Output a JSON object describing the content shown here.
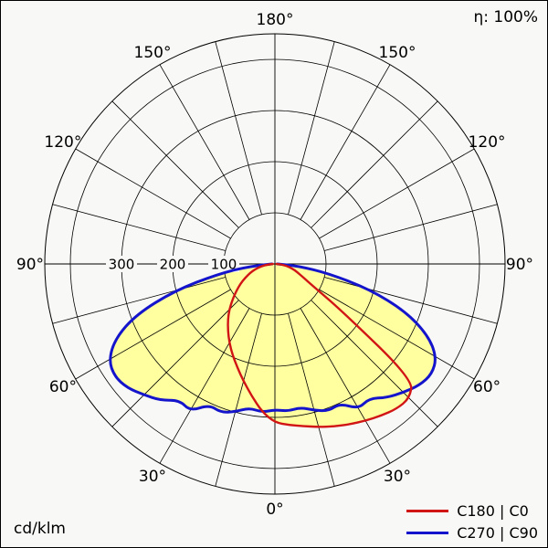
{
  "header": {
    "efficiency": "η: 100%"
  },
  "footer": {
    "unit": "cd/klm"
  },
  "legend": {
    "items": [
      {
        "label": "C180 | C0",
        "color": "#d11414"
      },
      {
        "label": "C270 | C90",
        "color": "#1414cc"
      }
    ]
  },
  "chart_data": {
    "type": "polar",
    "subtype": "luminous-intensity-distribution",
    "title": "Luminous intensity distribution polar curve",
    "unit": "cd/klm",
    "efficiency": "100%",
    "fill_color": "#ffffa0",
    "grid": {
      "angle_step_deg": 15,
      "angle_label_step_deg": 30,
      "angle_labels": [
        "0°",
        "30°",
        "60°",
        "90°",
        "120°",
        "150°",
        "180°"
      ],
      "radial_ticks": [
        100,
        200,
        300,
        400
      ],
      "radial_tick_labels": [
        "100",
        "200",
        "300"
      ],
      "grid_color": "#000000"
    },
    "angles_deg": [
      0,
      5,
      10,
      15,
      20,
      25,
      30,
      35,
      40,
      45,
      50,
      55,
      60,
      65,
      70,
      75,
      80,
      85,
      90
    ],
    "series": [
      {
        "id": "c180-c0",
        "name": "C180 | C0",
        "color": "#d11414",
        "left_plane": "C180",
        "right_plane": "C0",
        "left_values": [
          310,
          290,
          262,
          237,
          215,
          196,
          178,
          160,
          143,
          126,
          108,
          92,
          78,
          64,
          52,
          40,
          28,
          16,
          4
        ],
        "right_values": [
          310,
          316,
          322,
          330,
          338,
          346,
          354,
          362,
          370,
          372,
          352,
          160,
          85,
          60,
          46,
          35,
          24,
          13,
          3
        ]
      },
      {
        "id": "c270-c90",
        "name": "C270 | C90",
        "color": "#1414cc",
        "left_plane": "C270",
        "right_plane": "C90",
        "left_values": [
          285,
          291,
          286,
          299,
          309,
          304,
          332,
          325,
          348,
          362,
          377,
          383,
          375,
          344,
          288,
          203,
          113,
          47,
          6
        ],
        "right_values": [
          285,
          289,
          285,
          296,
          306,
          301,
          327,
          321,
          341,
          355,
          369,
          375,
          365,
          330,
          272,
          192,
          106,
          44,
          5
        ]
      }
    ]
  }
}
